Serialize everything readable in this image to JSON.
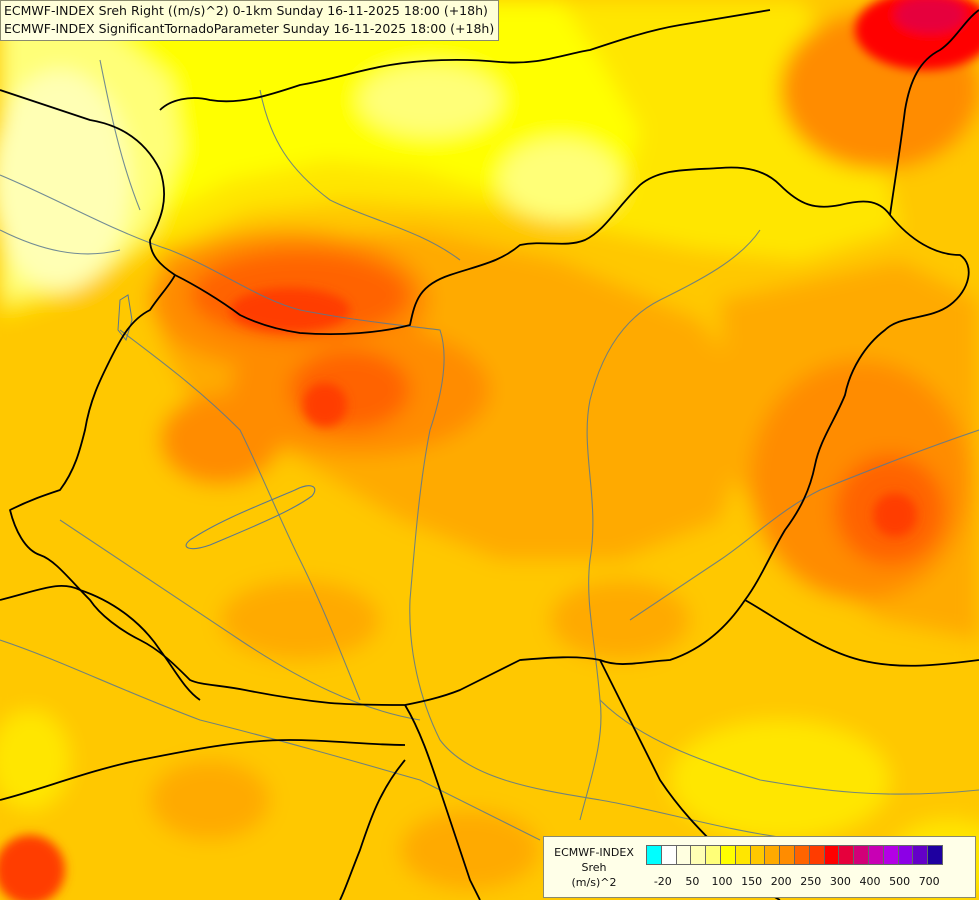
{
  "title": {
    "line1": "ECMWF-INDEX Sreh Right ((m/s)^2) 0-1km Sunday 16-11-2025 18:00 (+18h)",
    "line2": "ECMWF-INDEX SignificantTornadoParameter Sunday 16-11-2025 18:00 (+18h)"
  },
  "legend": {
    "line1": "ECMWF-INDEX",
    "line2": "Sreh",
    "line3": "(m/s)^2",
    "colors": [
      "#00ffff",
      "#ffffff",
      "#ffffe0",
      "#ffffb4",
      "#ffff78",
      "#ffff00",
      "#ffe600",
      "#ffc800",
      "#ffaa00",
      "#ff8c00",
      "#ff6400",
      "#ff3c00",
      "#ff0000",
      "#e6003c",
      "#d20078",
      "#c800b4",
      "#b400e6",
      "#8c00e6",
      "#6400c8",
      "#1e00a0"
    ],
    "ticks": [
      "-20",
      "50",
      "100",
      "150",
      "200",
      "250",
      "300",
      "400",
      "500",
      "700"
    ]
  },
  "map": {
    "colors": {
      "pale_yellow": "#ffffb4",
      "light_yellow": "#ffff78",
      "yellow": "#ffff00",
      "gold": "#ffe600",
      "yellow_orange": "#ffc800",
      "orange_light": "#ffaa00",
      "orange": "#ff8c00",
      "red_orange": "#ff6400",
      "red": "#ff3c00",
      "deep_red": "#ff0000",
      "magenta": "#e6003c",
      "border": "#000000",
      "river": "#5a7890"
    }
  }
}
